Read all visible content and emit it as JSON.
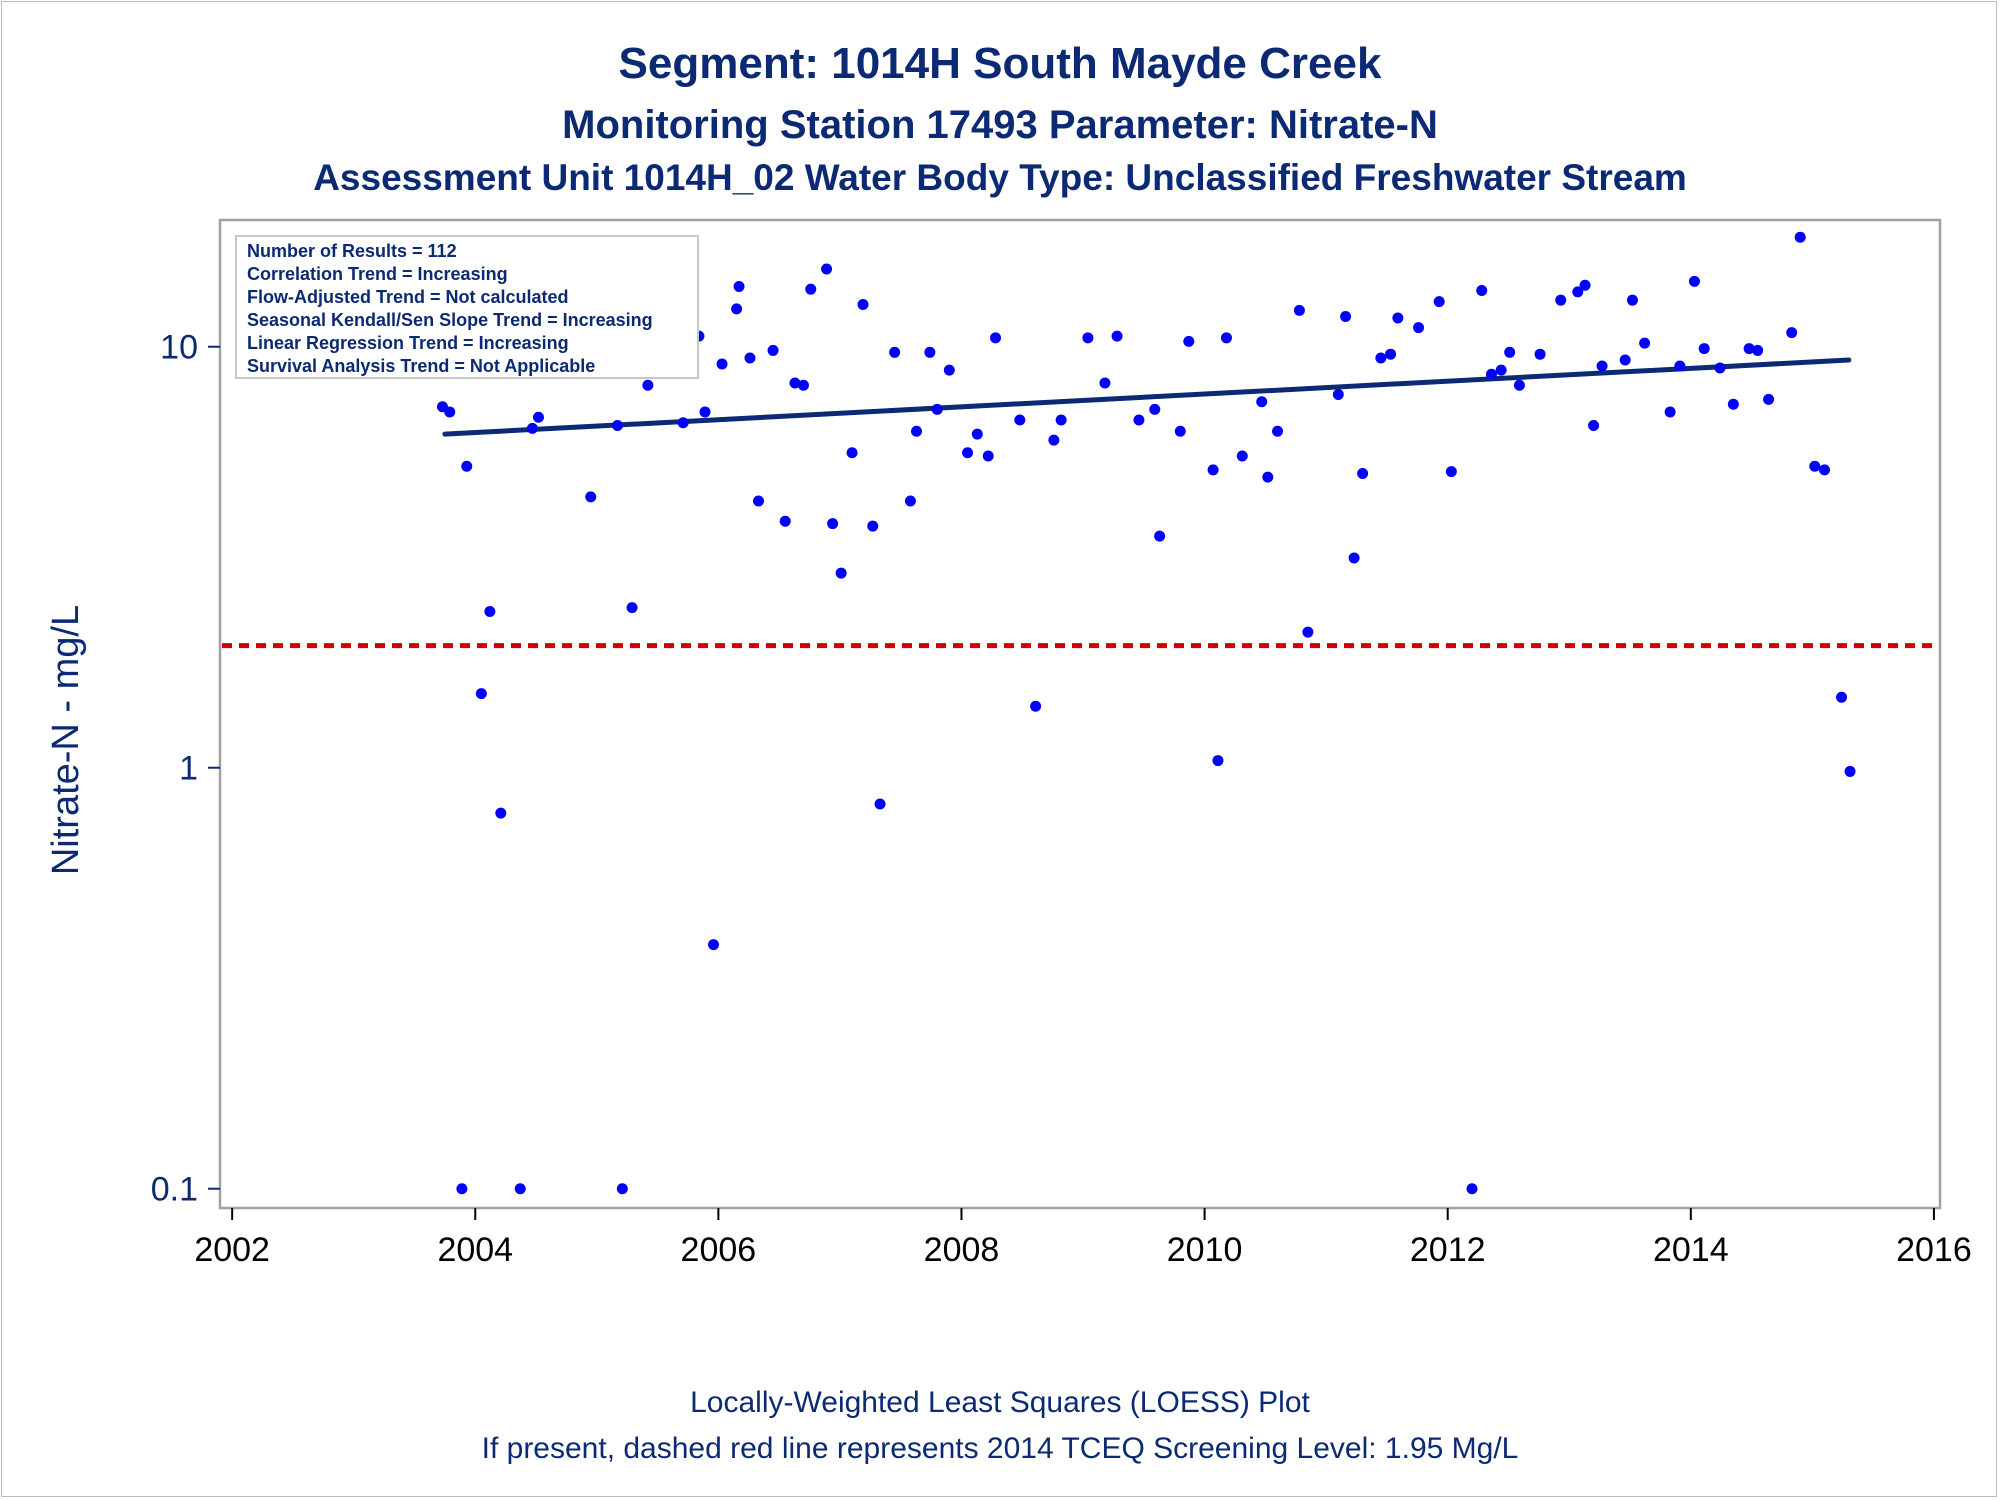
{
  "colors": {
    "title": "#0b2a73",
    "points": "#0000ff",
    "trend_line": "#0b2a73",
    "screening_line": "#d00000",
    "frame": "#a0a0a0"
  },
  "chart_data": {
    "type": "scatter",
    "title": "Segment: 1014H  South Mayde Creek",
    "subtitle": "Monitoring Station 17493 Parameter: Nitrate-N",
    "subtitle2": "Assessment Unit 1014H_02   Water Body Type: Unclassified Freshwater Stream",
    "xlabel": "",
    "ylabel": "Nitrate-N - mg/L",
    "yscale": "log",
    "xlim": [
      2001.9,
      2016.05
    ],
    "ylim": [
      0.09,
      20
    ],
    "xticks": [
      "2002",
      "2004",
      "2006",
      "2008",
      "2010",
      "2012",
      "2014",
      "2016"
    ],
    "yticks": [
      "0.1",
      "1",
      "10"
    ],
    "grid": false,
    "legend_placement": "top-left",
    "stats_box": [
      "Number of Results = 112",
      "Correlation Trend = Increasing",
      "Flow-Adjusted Trend = Not calculated",
      "Seasonal Kendall/Sen Slope Trend = Increasing",
      "Linear Regression Trend = Increasing",
      "Survival Analysis Trend = Not Applicable"
    ],
    "reference_line": {
      "y": 1.95,
      "style": "dashed"
    },
    "trend_line": {
      "x": [
        2003.75,
        2015.3
      ],
      "y": [
        6.2,
        9.3
      ]
    },
    "points": [
      [
        2003.73,
        7.2
      ],
      [
        2003.79,
        7.0
      ],
      [
        2003.89,
        0.1
      ],
      [
        2003.93,
        5.2
      ],
      [
        2004.05,
        1.5
      ],
      [
        2004.12,
        2.35
      ],
      [
        2004.21,
        0.78
      ],
      [
        2004.3,
        9.5
      ],
      [
        2004.37,
        0.1
      ],
      [
        2004.47,
        6.4
      ],
      [
        2004.52,
        6.8
      ],
      [
        2004.6,
        9.6
      ],
      [
        2004.73,
        11.0
      ],
      [
        2004.8,
        10.8
      ],
      [
        2004.95,
        4.4
      ],
      [
        2005.08,
        14.5
      ],
      [
        2005.17,
        6.5
      ],
      [
        2005.21,
        0.1
      ],
      [
        2005.29,
        2.4
      ],
      [
        2005.42,
        8.1
      ],
      [
        2005.71,
        6.6
      ],
      [
        2005.84,
        10.6
      ],
      [
        2005.89,
        7.0
      ],
      [
        2005.96,
        0.38
      ],
      [
        2006.03,
        9.1
      ],
      [
        2006.15,
        12.3
      ],
      [
        2006.17,
        13.9
      ],
      [
        2006.26,
        9.4
      ],
      [
        2006.33,
        4.3
      ],
      [
        2006.45,
        9.8
      ],
      [
        2006.55,
        3.85
      ],
      [
        2006.63,
        8.2
      ],
      [
        2006.7,
        8.1
      ],
      [
        2006.76,
        13.7
      ],
      [
        2006.89,
        15.3
      ],
      [
        2006.94,
        3.8
      ],
      [
        2007.01,
        2.9
      ],
      [
        2007.1,
        5.6
      ],
      [
        2007.19,
        12.6
      ],
      [
        2007.27,
        3.75
      ],
      [
        2007.33,
        0.82
      ],
      [
        2007.45,
        9.7
      ],
      [
        2007.58,
        4.3
      ],
      [
        2007.63,
        6.3
      ],
      [
        2007.74,
        9.7
      ],
      [
        2007.8,
        7.1
      ],
      [
        2007.9,
        8.8
      ],
      [
        2008.05,
        5.6
      ],
      [
        2008.13,
        6.2
      ],
      [
        2008.22,
        5.5
      ],
      [
        2008.28,
        10.5
      ],
      [
        2008.48,
        6.7
      ],
      [
        2008.61,
        1.4
      ],
      [
        2008.76,
        6.0
      ],
      [
        2008.82,
        6.7
      ],
      [
        2009.04,
        10.5
      ],
      [
        2009.18,
        8.2
      ],
      [
        2009.28,
        10.6
      ],
      [
        2009.46,
        6.7
      ],
      [
        2009.59,
        7.1
      ],
      [
        2009.63,
        3.55
      ],
      [
        2009.8,
        6.3
      ],
      [
        2009.87,
        10.3
      ],
      [
        2010.07,
        5.1
      ],
      [
        2010.11,
        1.04
      ],
      [
        2010.18,
        10.5
      ],
      [
        2010.31,
        5.5
      ],
      [
        2010.47,
        7.4
      ],
      [
        2010.52,
        4.9
      ],
      [
        2010.6,
        6.3
      ],
      [
        2010.78,
        12.2
      ],
      [
        2010.85,
        2.1
      ],
      [
        2011.1,
        7.7
      ],
      [
        2011.16,
        11.8
      ],
      [
        2011.23,
        3.15
      ],
      [
        2011.3,
        5.0
      ],
      [
        2011.45,
        9.4
      ],
      [
        2011.53,
        9.6
      ],
      [
        2011.59,
        11.7
      ],
      [
        2011.76,
        11.1
      ],
      [
        2011.93,
        12.8
      ],
      [
        2012.03,
        5.05
      ],
      [
        2012.2,
        0.1
      ],
      [
        2012.28,
        13.6
      ],
      [
        2012.36,
        8.6
      ],
      [
        2012.44,
        8.8
      ],
      [
        2012.51,
        9.7
      ],
      [
        2012.59,
        8.1
      ],
      [
        2012.76,
        9.6
      ],
      [
        2012.93,
        12.9
      ],
      [
        2013.07,
        13.5
      ],
      [
        2013.13,
        14.0
      ],
      [
        2013.2,
        6.5
      ],
      [
        2013.27,
        9.0
      ],
      [
        2013.46,
        9.3
      ],
      [
        2013.52,
        12.9
      ],
      [
        2013.62,
        10.2
      ],
      [
        2013.83,
        7.0
      ],
      [
        2013.91,
        9.0
      ],
      [
        2014.03,
        14.3
      ],
      [
        2014.11,
        9.9
      ],
      [
        2014.24,
        8.9
      ],
      [
        2014.35,
        7.3
      ],
      [
        2014.48,
        9.9
      ],
      [
        2014.55,
        9.8
      ],
      [
        2014.64,
        7.5
      ],
      [
        2014.83,
        10.8
      ],
      [
        2014.9,
        18.2
      ],
      [
        2015.02,
        5.2
      ],
      [
        2015.1,
        5.1
      ],
      [
        2015.24,
        1.47
      ],
      [
        2015.31,
        0.98
      ]
    ]
  },
  "footer": {
    "line1": "Locally-Weighted Least Squares (LOESS) Plot",
    "line2": "If present, dashed red line represents 2014 TCEQ Screening Level: 1.95 Mg/L"
  }
}
